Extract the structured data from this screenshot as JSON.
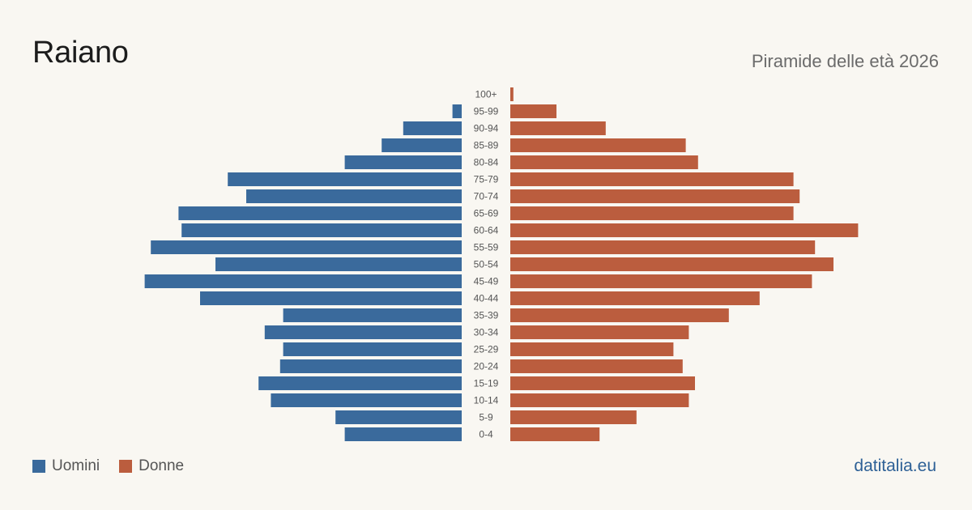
{
  "title": "Raiano",
  "subtitle": "Piramide delle età 2026",
  "brand": "datitalia.eu",
  "legend": {
    "men_label": "Uomini",
    "women_label": "Donne"
  },
  "colors": {
    "men": "#3a6a9c",
    "women": "#bb5d3e",
    "background": "#f9f7f2"
  },
  "chart_data": {
    "type": "bar",
    "orientation": "horizontal-pyramid",
    "categories": [
      "100+",
      "95-99",
      "90-94",
      "85-89",
      "80-84",
      "75-79",
      "70-74",
      "65-69",
      "60-64",
      "55-59",
      "50-54",
      "45-49",
      "40-44",
      "35-39",
      "30-34",
      "25-29",
      "20-24",
      "15-19",
      "10-14",
      "5-9",
      "0-4"
    ],
    "series": [
      {
        "name": "Uomini",
        "values": [
          0,
          3,
          19,
          26,
          38,
          76,
          70,
          92,
          91,
          101,
          80,
          103,
          85,
          58,
          64,
          58,
          59,
          66,
          62,
          41,
          38
        ]
      },
      {
        "name": "Donne",
        "values": [
          1,
          15,
          31,
          57,
          61,
          92,
          94,
          92,
          113,
          99,
          105,
          98,
          81,
          71,
          58,
          53,
          56,
          60,
          58,
          41,
          29
        ]
      }
    ]
  }
}
